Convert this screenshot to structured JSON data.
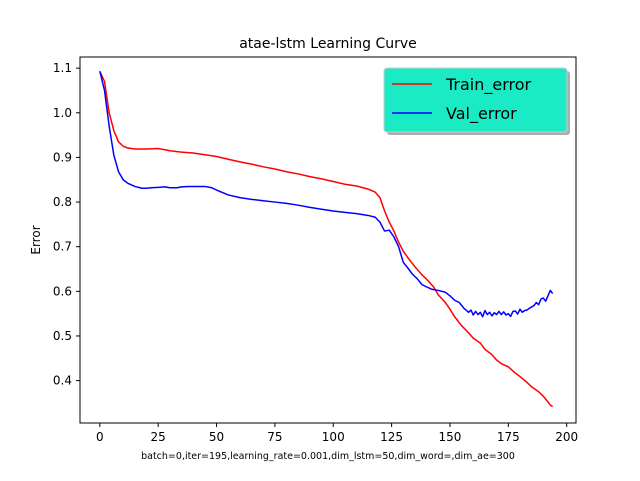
{
  "chart_data": {
    "type": "line",
    "title": "atae-lstm Learning Curve",
    "xlabel": "batch=0,iter=195,learning_rate=0.001,dim_lstm=50,dim_word=,dim_ae=300",
    "ylabel": "Error",
    "xlim": [
      -8.5,
      204
    ],
    "ylim": [
      0.305,
      1.125
    ],
    "xticks": [
      0,
      25,
      50,
      75,
      100,
      125,
      150,
      175,
      200
    ],
    "yticks": [
      0.4,
      0.5,
      0.6,
      0.7,
      0.8,
      0.9,
      1.0,
      1.1
    ],
    "xtick_labels": [
      "0",
      "25",
      "50",
      "75",
      "100",
      "125",
      "150",
      "175",
      "200"
    ],
    "ytick_labels": [
      "0.4",
      "0.5",
      "0.6",
      "0.7",
      "0.8",
      "0.9",
      "1.0",
      "1.1"
    ],
    "grid": false,
    "legend": {
      "position": "top-right",
      "background": "#1aebc4"
    },
    "series": [
      {
        "name": "Train_error",
        "color": "#ff0000",
        "x": [
          0,
          2,
          4,
          6,
          8,
          10,
          12,
          15,
          20,
          25,
          30,
          35,
          40,
          45,
          50,
          55,
          60,
          65,
          70,
          75,
          80,
          85,
          90,
          95,
          100,
          105,
          110,
          115,
          118,
          120,
          122,
          124,
          126,
          128,
          130,
          132,
          135,
          138,
          140,
          143,
          145,
          148,
          150,
          152,
          155,
          158,
          160,
          163,
          165,
          168,
          170,
          172,
          175,
          178,
          180,
          183,
          185,
          188,
          190,
          192,
          193,
          194
        ],
        "values": [
          1.093,
          1.07,
          1.0,
          0.96,
          0.935,
          0.925,
          0.921,
          0.919,
          0.919,
          0.92,
          0.915,
          0.912,
          0.91,
          0.906,
          0.902,
          0.896,
          0.89,
          0.885,
          0.879,
          0.874,
          0.868,
          0.863,
          0.857,
          0.852,
          0.846,
          0.84,
          0.836,
          0.829,
          0.822,
          0.81,
          0.78,
          0.755,
          0.735,
          0.71,
          0.69,
          0.675,
          0.655,
          0.637,
          0.627,
          0.61,
          0.592,
          0.575,
          0.56,
          0.543,
          0.523,
          0.507,
          0.495,
          0.484,
          0.47,
          0.458,
          0.446,
          0.438,
          0.431,
          0.417,
          0.409,
          0.396,
          0.386,
          0.375,
          0.365,
          0.352,
          0.345,
          0.342
        ]
      },
      {
        "name": "Val_error",
        "color": "#0000ff",
        "x": [
          0,
          2,
          4,
          6,
          8,
          10,
          12,
          15,
          18,
          20,
          22,
          25,
          28,
          30,
          33,
          35,
          38,
          40,
          45,
          48,
          50,
          55,
          60,
          65,
          70,
          75,
          80,
          85,
          90,
          95,
          100,
          105,
          110,
          115,
          118,
          120,
          122,
          124,
          126,
          128,
          130,
          132,
          134,
          136,
          138,
          140,
          142,
          145,
          148,
          150,
          152,
          154,
          156,
          158,
          159,
          160,
          161,
          162,
          163,
          164,
          165,
          166,
          167,
          168,
          169,
          170,
          171,
          172,
          173,
          174,
          175,
          176,
          177,
          178,
          179,
          180,
          181,
          182,
          183,
          184,
          185,
          186,
          187,
          188,
          189,
          190,
          191,
          192,
          193,
          194
        ],
        "values": [
          1.093,
          1.05,
          0.97,
          0.905,
          0.868,
          0.85,
          0.842,
          0.835,
          0.831,
          0.831,
          0.832,
          0.833,
          0.834,
          0.832,
          0.832,
          0.834,
          0.835,
          0.835,
          0.835,
          0.832,
          0.827,
          0.816,
          0.81,
          0.806,
          0.803,
          0.8,
          0.797,
          0.793,
          0.788,
          0.784,
          0.78,
          0.777,
          0.774,
          0.77,
          0.766,
          0.755,
          0.735,
          0.737,
          0.722,
          0.7,
          0.665,
          0.652,
          0.638,
          0.628,
          0.615,
          0.61,
          0.605,
          0.602,
          0.598,
          0.59,
          0.58,
          0.575,
          0.562,
          0.553,
          0.558,
          0.547,
          0.555,
          0.548,
          0.553,
          0.543,
          0.557,
          0.548,
          0.553,
          0.545,
          0.552,
          0.548,
          0.555,
          0.548,
          0.554,
          0.547,
          0.55,
          0.544,
          0.555,
          0.556,
          0.549,
          0.56,
          0.553,
          0.557,
          0.558,
          0.562,
          0.565,
          0.568,
          0.575,
          0.57,
          0.583,
          0.585,
          0.578,
          0.59,
          0.602,
          0.595
        ]
      }
    ]
  }
}
